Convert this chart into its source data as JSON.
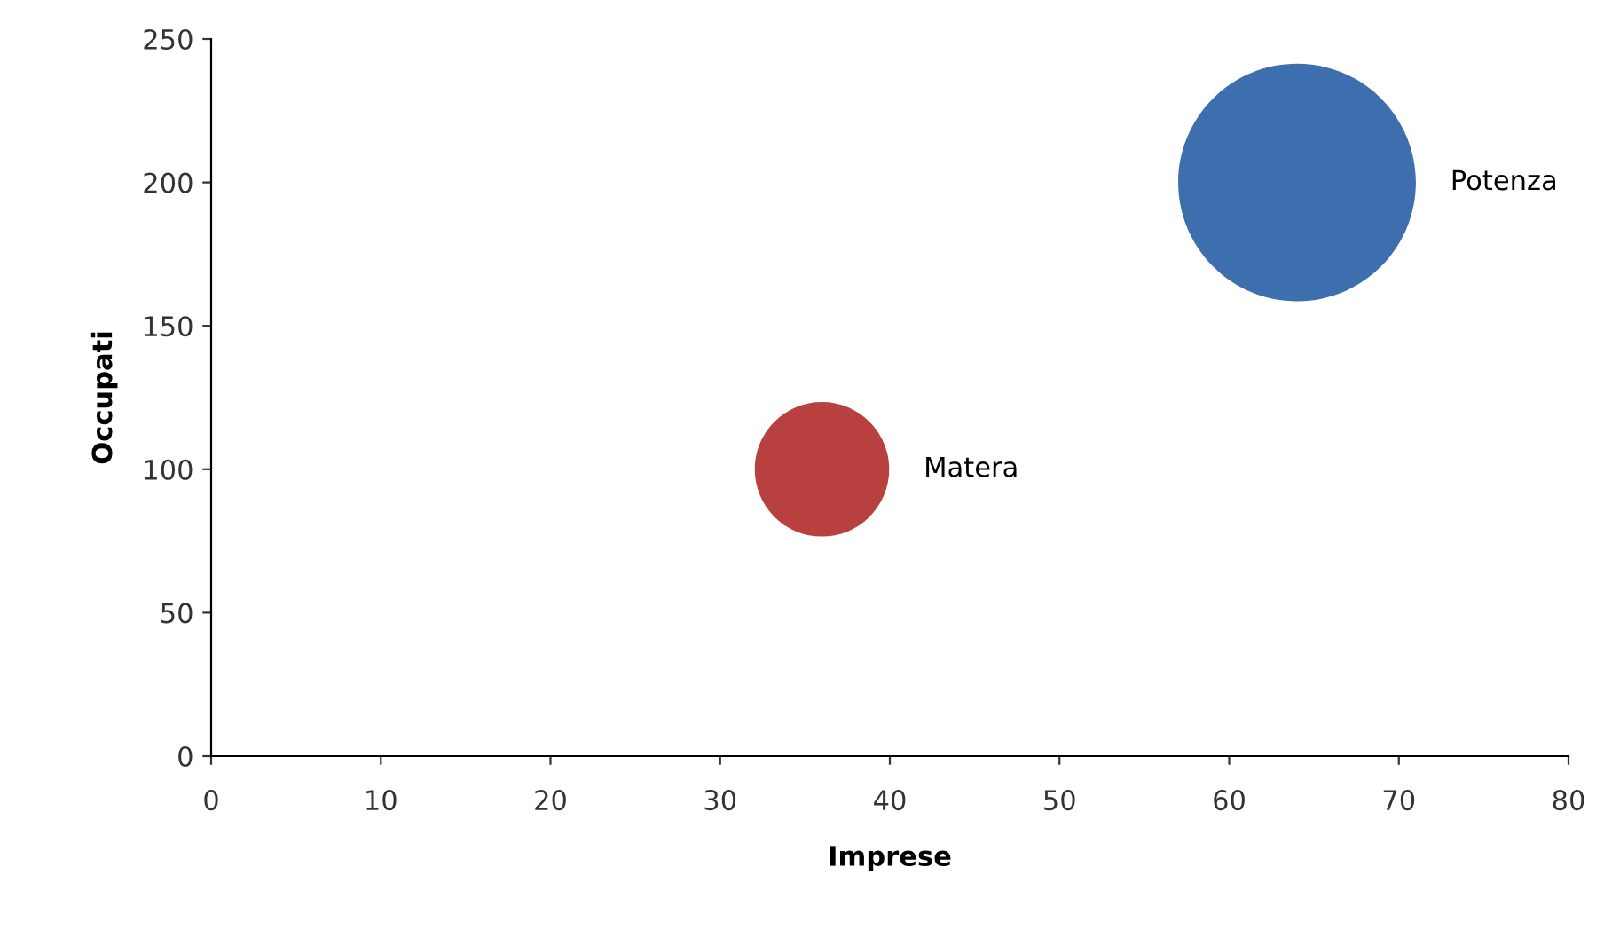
{
  "chart_data": {
    "type": "bubble",
    "xlabel": "Imprese",
    "ylabel": "Occupati",
    "series": [
      {
        "name": "Matera",
        "color": "#b8413f",
        "x": [
          36
        ],
        "values": [
          100
        ],
        "sizes": [
          0.32
        ]
      },
      {
        "name": "Potenza",
        "color": "#3d6fae",
        "x": [
          64
        ],
        "values": [
          200
        ],
        "sizes": [
          1
        ]
      }
    ],
    "xlim": [
      0,
      80
    ],
    "xticks": [
      0,
      10,
      20,
      30,
      40,
      50,
      60,
      70,
      80
    ],
    "ylim": [
      0,
      250
    ],
    "yticks": [
      0,
      50,
      100,
      150,
      200,
      250
    ],
    "grid": false,
    "legend": false
  }
}
